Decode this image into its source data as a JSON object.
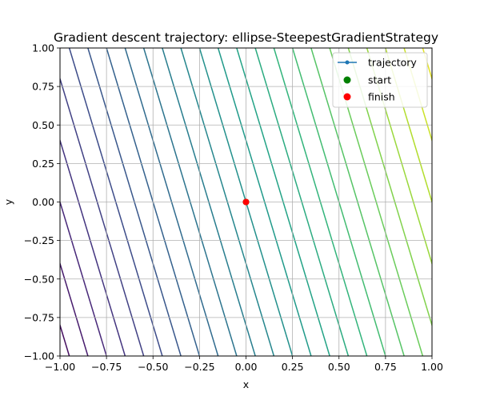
{
  "chart_data": {
    "type": "line",
    "title": "Gradient descent trajectory: ellipse-SteepestGradientStrategy",
    "xlabel": "x",
    "ylabel": "y",
    "xlim": [
      -1.0,
      1.0
    ],
    "ylim": [
      -1.0,
      1.0
    ],
    "xticks": [
      "−1.00",
      "−0.75",
      "−0.50",
      "−0.25",
      "0.00",
      "0.25",
      "0.50",
      "0.75",
      "1.00"
    ],
    "yticks": [
      "−1.00",
      "−0.75",
      "−0.50",
      "−0.25",
      "0.00",
      "0.25",
      "0.50",
      "0.75",
      "1.00"
    ],
    "grid": true,
    "legend_position": "top-right",
    "contours": {
      "levels": [
        -2.6,
        -2.4,
        -2.2,
        -2.0,
        -1.8,
        -1.6,
        -1.4,
        -1.2,
        -1.0,
        -0.8,
        -0.6,
        -0.4,
        -0.2,
        0.0,
        0.2,
        0.4,
        0.6,
        0.8,
        1.0,
        1.2,
        1.4,
        1.6,
        1.8,
        2.0,
        2.2,
        2.4,
        2.6
      ],
      "x_coefficient": 2.0,
      "y_coefficient": 0.5,
      "colormap": [
        "#440154",
        "#482878",
        "#3e4a89",
        "#31688e",
        "#26828e",
        "#1f9e89",
        "#35b779",
        "#6ece58",
        "#b5de2b",
        "#fde725"
      ]
    },
    "series": [
      {
        "name": "trajectory",
        "x": [
          0.0,
          0.0
        ],
        "y": [
          0.0,
          0.0
        ],
        "color": "#1f77b4"
      },
      {
        "name": "start",
        "x": [
          0.0
        ],
        "y": [
          0.0
        ],
        "color": "#008000"
      },
      {
        "name": "finish",
        "x": [
          0.0
        ],
        "y": [
          0.0
        ],
        "color": "#ff0000"
      }
    ]
  }
}
